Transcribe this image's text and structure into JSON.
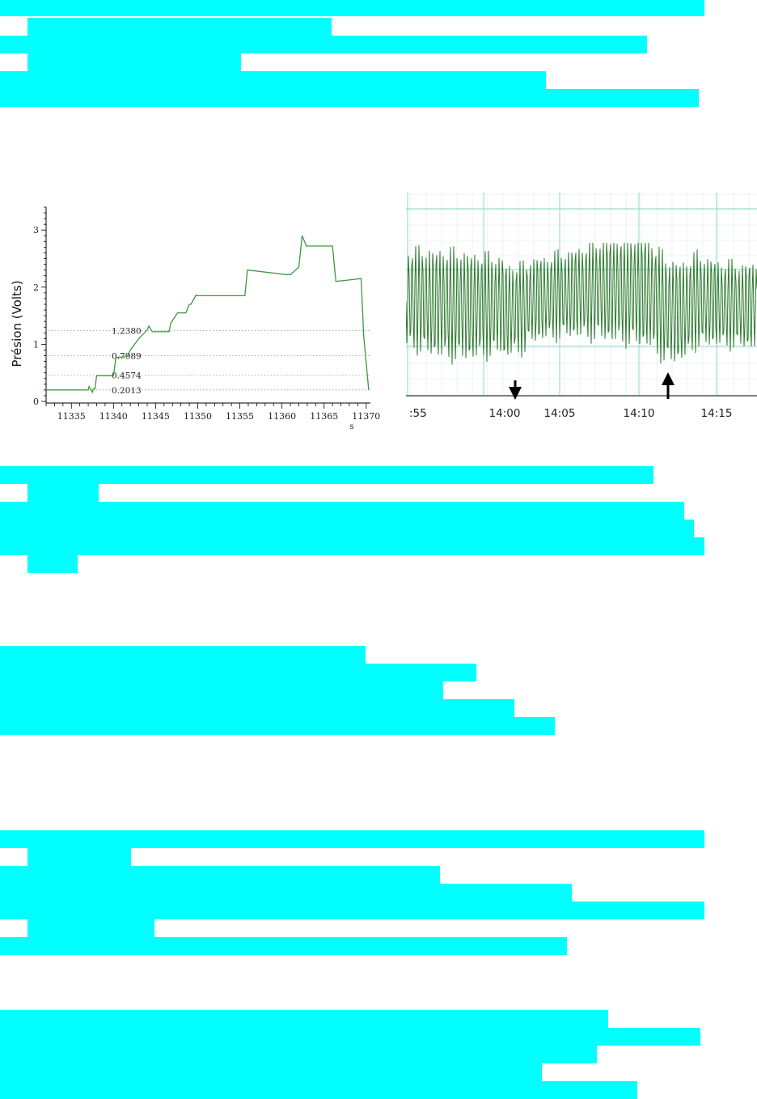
{
  "colors": {
    "redaction": "#00ffff",
    "trace_left": "#3a9a3a",
    "trace_right": "#2d7a2d",
    "grid_right": "#8fd4c4"
  },
  "chart_data": [
    {
      "type": "line",
      "xlabel": "s",
      "ylabel": "Présion (Volts)",
      "xlim": [
        11332,
        11370.5
      ],
      "ylim": [
        0,
        3.4
      ],
      "x_ticks": [
        "11335",
        "11340",
        "11345",
        "11350",
        "11355",
        "11360",
        "11365",
        "11370"
      ],
      "y_ticks": [
        "0",
        "1",
        "2",
        "3"
      ],
      "reference_lines": [
        {
          "value": 1.238,
          "label": "1.2380"
        },
        {
          "value": 0.7989,
          "label": "0.7989"
        },
        {
          "value": 0.4574,
          "label": "0.4574"
        },
        {
          "value": 0.2013,
          "label": "0.2013"
        }
      ],
      "series": [
        {
          "x": [
            11332,
            11337.0,
            11337.1,
            11337.5,
            11337.6,
            11337.8,
            11338.0,
            11340.0,
            11340.3,
            11341.6,
            11342.0,
            11343.0,
            11344.0,
            11344.2,
            11344.6,
            11346.6,
            11346.8,
            11347.6,
            11347.9,
            11348.6,
            11349.0,
            11349.2,
            11349.8,
            11350.0,
            11355.6,
            11355.9,
            11360.5,
            11361.0,
            11362.0,
            11362.4,
            11362.9,
            11365.5,
            11366.0,
            11366.4,
            11369.4,
            11369.7,
            11370.3
          ],
          "y": [
            0.2,
            0.2,
            0.26,
            0.16,
            0.22,
            0.22,
            0.45,
            0.45,
            0.77,
            0.78,
            0.9,
            1.1,
            1.25,
            1.32,
            1.22,
            1.22,
            1.37,
            1.55,
            1.55,
            1.55,
            1.7,
            1.7,
            1.86,
            1.85,
            1.85,
            2.3,
            2.22,
            2.22,
            2.35,
            2.9,
            2.72,
            2.72,
            2.72,
            2.1,
            2.15,
            1.15,
            0.2
          ]
        }
      ]
    },
    {
      "type": "line",
      "x_ticks": [
        ":55",
        "14:00",
        "14:05",
        "14:10",
        "14:15"
      ],
      "markers": [
        {
          "x": "14:02",
          "direction": "down"
        },
        {
          "x": "14:12",
          "direction": "up"
        }
      ]
    }
  ]
}
